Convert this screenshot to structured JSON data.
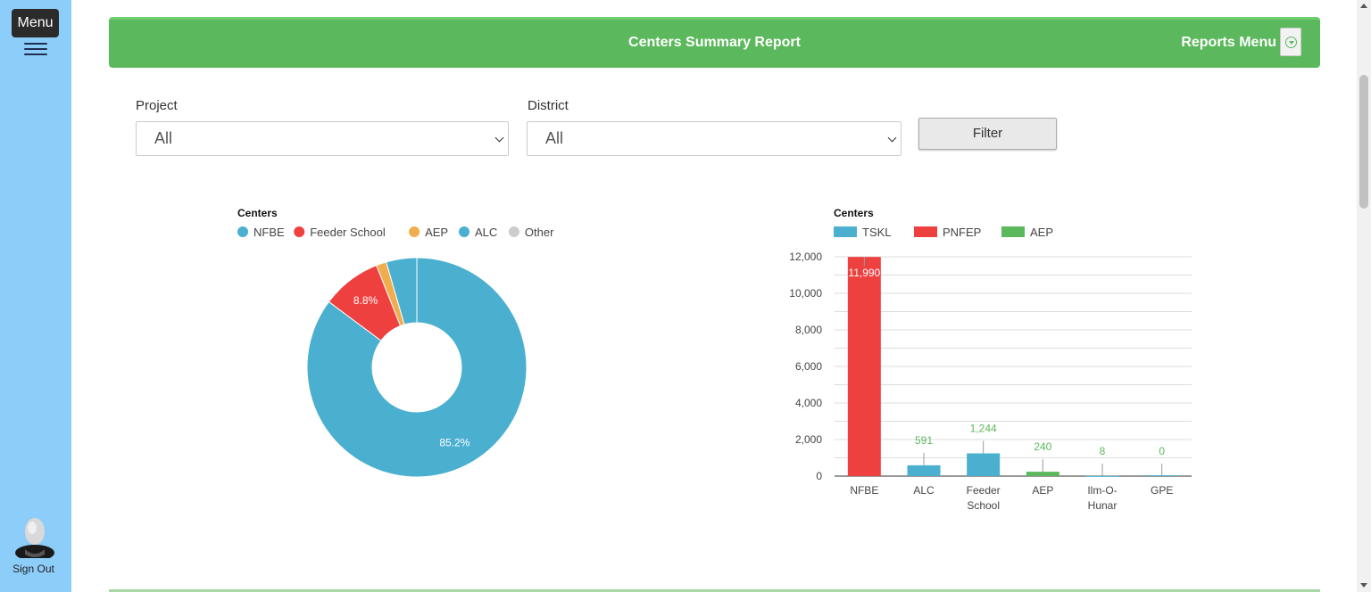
{
  "sidebar": {
    "menu_label": "Menu",
    "signout_label": "Sign Out"
  },
  "header": {
    "title": "Centers Summary Report",
    "reports_menu_label": "Reports Menu"
  },
  "filters": {
    "project_label": "Project",
    "project_value": "All",
    "district_label": "District",
    "district_value": "All",
    "filter_button": "Filter"
  },
  "colors": {
    "accent": "#5cb85c",
    "sidebar": "#8dcdf9"
  },
  "chart_data": [
    {
      "type": "pie",
      "title": "Centers",
      "donut": true,
      "legend_position": "top",
      "labels": [
        "NFBE",
        "Feeder School",
        "AEP",
        "ALC",
        "Other"
      ],
      "colors": [
        "#4bafd0",
        "#ef4040",
        "#f0ad4e",
        "#4bafd0",
        "#cccccc"
      ],
      "values": [
        85.2,
        8.8,
        1.5,
        4.5,
        0
      ],
      "data_labels": [
        "85.2%",
        "8.8%",
        "",
        "",
        ""
      ]
    },
    {
      "type": "bar",
      "title": "Centers",
      "legend_position": "top",
      "stacked": true,
      "categories": [
        "NFBE",
        "ALC",
        "Feeder School",
        "AEP",
        "Ilm-O-Hunar",
        "GPE"
      ],
      "category_lines": [
        [
          "NFBE"
        ],
        [
          "ALC"
        ],
        [
          "Feeder",
          "School"
        ],
        [
          "AEP"
        ],
        [
          "Ilm-O-",
          "Hunar"
        ],
        [
          "GPE"
        ]
      ],
      "series": [
        {
          "name": "TSKL",
          "color": "#4bafd0",
          "values": [
            0,
            591,
            1244,
            0,
            8,
            0
          ]
        },
        {
          "name": "PNFEP",
          "color": "#ef4040",
          "values": [
            11990,
            0,
            0,
            0,
            0,
            0
          ]
        },
        {
          "name": "AEP",
          "color": "#5cb85c",
          "values": [
            0,
            0,
            0,
            240,
            0,
            0
          ]
        }
      ],
      "totals": [
        "11,990",
        "591",
        "1,244",
        "240",
        "8",
        "0"
      ],
      "ylim": [
        0,
        12000
      ],
      "yticks": [
        "0",
        "2,000",
        "4,000",
        "6,000",
        "8,000",
        "10,000",
        "12,000"
      ],
      "grid": true
    }
  ]
}
